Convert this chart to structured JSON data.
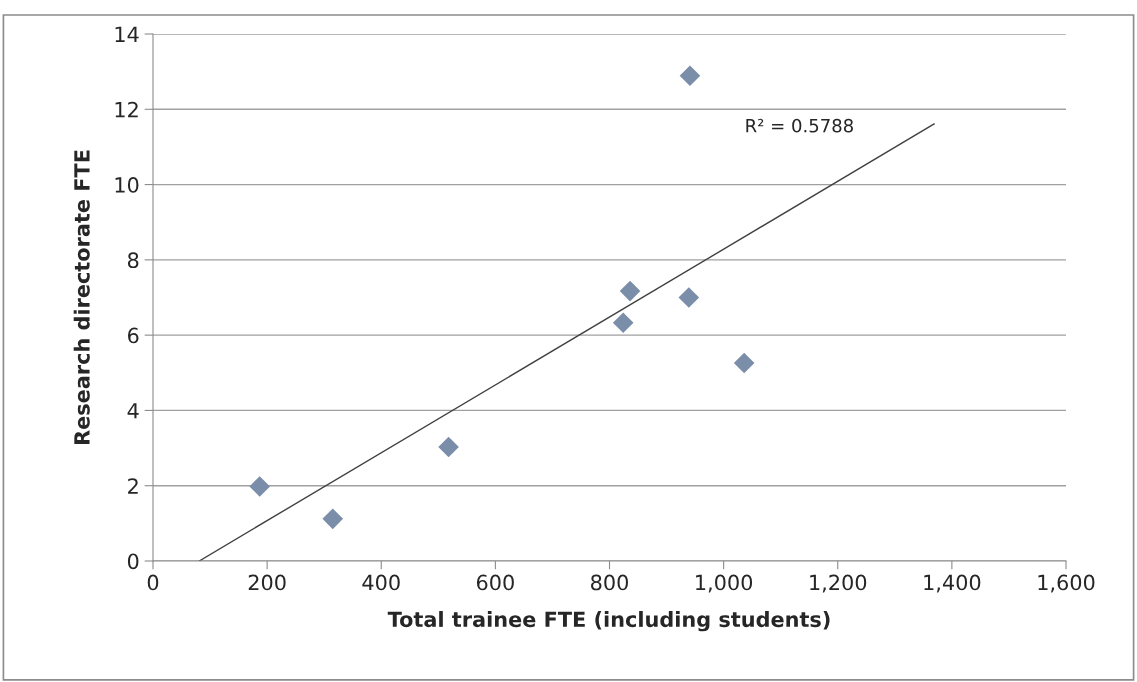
{
  "chart_data": {
    "type": "scatter",
    "xlabel": "Total trainee FTE (including students)",
    "ylabel": "Research directorate FTE",
    "series": [
      {
        "color": "#7a8eaa",
        "marker": "diamond",
        "x": [
          187,
          315,
          518,
          824,
          836,
          939,
          941,
          1036
        ],
        "values": [
          1.98,
          1.12,
          3.03,
          6.33,
          7.17,
          7.0,
          12.89,
          5.26
        ]
      },
      {
        "type": "line",
        "color": "#404040",
        "marker": "none",
        "x": [
          81,
          1369
        ],
        "values": [
          0,
          11.61
        ]
      }
    ],
    "annotations": [
      "R² = 0.5788"
    ],
    "xlim": [
      0,
      1600
    ],
    "xticks": [
      0,
      {
        "value": 200,
        "label": "200"
      },
      {
        "value": 400,
        "label": "400"
      },
      {
        "value": 600,
        "label": "600"
      },
      {
        "value": 800,
        "label": "800"
      },
      {
        "value": 1000,
        "label": "1,000"
      },
      {
        "value": 1200,
        "label": "1,200"
      },
      {
        "value": 1400,
        "label": "1,400"
      },
      {
        "value": 1600,
        "label": "1,600"
      }
    ],
    "ylim": [
      0,
      14
    ],
    "yticks": [
      0,
      2,
      4,
      6,
      8,
      10,
      12,
      14
    ],
    "grid": "y",
    "legend": false
  }
}
